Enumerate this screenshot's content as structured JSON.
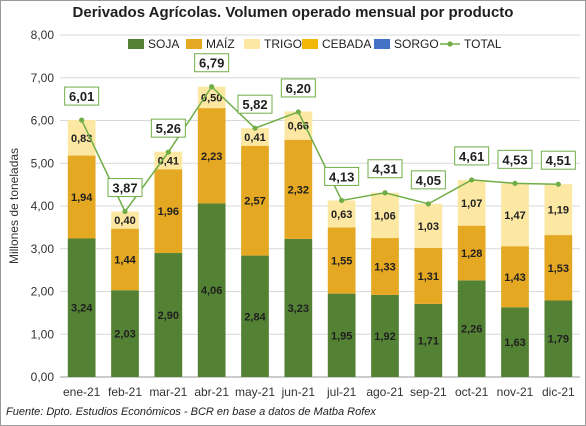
{
  "chart_data": {
    "type": "bar",
    "stacked": true,
    "title": "Derivados Agrícolas. Volumen operado mensual por producto",
    "ylabel": "Millones de toneladas",
    "xlabel": "",
    "ylim": [
      0,
      8
    ],
    "yticks": [
      "0,00",
      "1,00",
      "2,00",
      "3,00",
      "4,00",
      "5,00",
      "6,00",
      "7,00",
      "8,00"
    ],
    "grid": true,
    "legend_position": "top",
    "categories": [
      "ene-21",
      "feb-21",
      "mar-21",
      "abr-21",
      "may-21",
      "jun-21",
      "jul-21",
      "ago-21",
      "sep-21",
      "oct-21",
      "nov-21",
      "dic-21"
    ],
    "series": [
      {
        "name": "SOJA",
        "color": "#548235",
        "values": [
          3.24,
          2.03,
          2.9,
          4.06,
          2.84,
          3.23,
          1.95,
          1.92,
          1.71,
          2.26,
          1.63,
          1.79
        ],
        "labels": [
          "3,24",
          "2,03",
          "2,90",
          "4,06",
          "2,84",
          "3,23",
          "1,95",
          "1,92",
          "1,71",
          "2,26",
          "1,63",
          "1,79"
        ]
      },
      {
        "name": "MAÍZ",
        "color": "#e5a823",
        "values": [
          1.94,
          1.44,
          1.96,
          2.23,
          2.57,
          2.32,
          1.55,
          1.33,
          1.31,
          1.28,
          1.43,
          1.53
        ],
        "labels": [
          "1,94",
          "1,44",
          "1,96",
          "2,23",
          "2,57",
          "2,32",
          "1,55",
          "1,33",
          "1,31",
          "1,28",
          "1,43",
          "1,53"
        ]
      },
      {
        "name": "TRIGO",
        "color": "#fce8a3",
        "values": [
          0.83,
          0.4,
          0.41,
          0.5,
          0.41,
          0.66,
          0.63,
          1.06,
          1.03,
          1.07,
          1.47,
          1.19
        ],
        "labels": [
          "0,83",
          "0,40",
          "0,41",
          "0,50",
          "0,41",
          "0,66",
          "0,63",
          "1,06",
          "1,03",
          "1,07",
          "1,47",
          "1,19"
        ]
      },
      {
        "name": "CEBADA",
        "color": "#f2b705",
        "values": [
          0,
          0,
          0,
          0,
          0,
          0,
          0,
          0,
          0,
          0,
          0,
          0
        ]
      },
      {
        "name": "SORGO",
        "color": "#4472c4",
        "values": [
          0,
          0,
          0,
          0,
          0,
          0,
          0,
          0,
          0,
          0,
          0,
          0
        ]
      }
    ],
    "total": {
      "name": "TOTAL",
      "color": "#70ad47",
      "values": [
        6.01,
        3.87,
        5.26,
        6.79,
        5.82,
        6.2,
        4.13,
        4.31,
        4.05,
        4.61,
        4.53,
        4.51
      ],
      "labels": [
        "6,01",
        "3,87",
        "5,26",
        "6,79",
        "5,82",
        "6,20",
        "4,13",
        "4,31",
        "4,05",
        "4,61",
        "4,53",
        "4,51"
      ]
    },
    "source": "Fuente: Dpto. Estudios Económicos - BCR en base a datos de Matba Rofex"
  }
}
